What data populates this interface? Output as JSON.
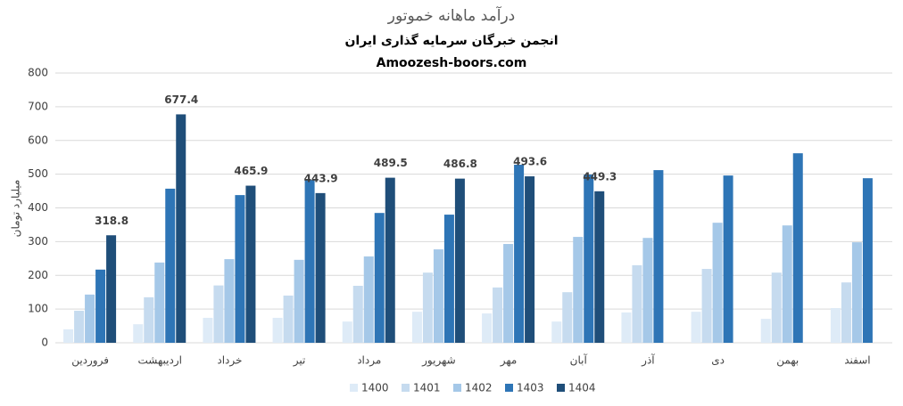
{
  "chart_data": {
    "type": "bar",
    "title": "درآمد ماهانه خموتور",
    "subtitle": "انجمن خبرگان سرمایه گذاری ایران",
    "source": "Amoozesh-boors.com",
    "y_label": "میلیارد تومان",
    "categories": [
      "فروردین",
      "اردیبهشت",
      "خرداد",
      "تیر",
      "مرداد",
      "شهریور",
      "مهر",
      "آبان",
      "آذر",
      "دی",
      "بهمن",
      "اسفند"
    ],
    "series": [
      {
        "name": "1400",
        "color": "#deebf7",
        "values": [
          40,
          55,
          74,
          74,
          63,
          92,
          87,
          63,
          90,
          92,
          71,
          103
        ]
      },
      {
        "name": "1401",
        "color": "#c6dbef",
        "values": [
          95,
          135,
          170,
          140,
          169,
          208,
          164,
          150,
          230,
          219,
          208,
          179
        ]
      },
      {
        "name": "1402",
        "color": "#a5c8e8",
        "values": [
          143,
          238,
          248,
          246,
          256,
          277,
          293,
          314,
          311,
          356,
          348,
          298
        ]
      },
      {
        "name": "1403",
        "color": "#2e75b6",
        "values": [
          217,
          457,
          438,
          483,
          385,
          380,
          528,
          499,
          512,
          496,
          562,
          488
        ]
      },
      {
        "name": "1404",
        "color": "#1f4e79",
        "values": [
          318.8,
          677.4,
          465.9,
          443.9,
          489.5,
          486.8,
          493.6,
          449.3,
          null,
          null,
          null,
          null
        ],
        "labels": true
      }
    ],
    "ylim": [
      0,
      800
    ],
    "yticks": [
      0,
      100,
      200,
      300,
      400,
      500,
      600,
      700,
      800
    ],
    "grid": true,
    "legend": "bottom"
  }
}
